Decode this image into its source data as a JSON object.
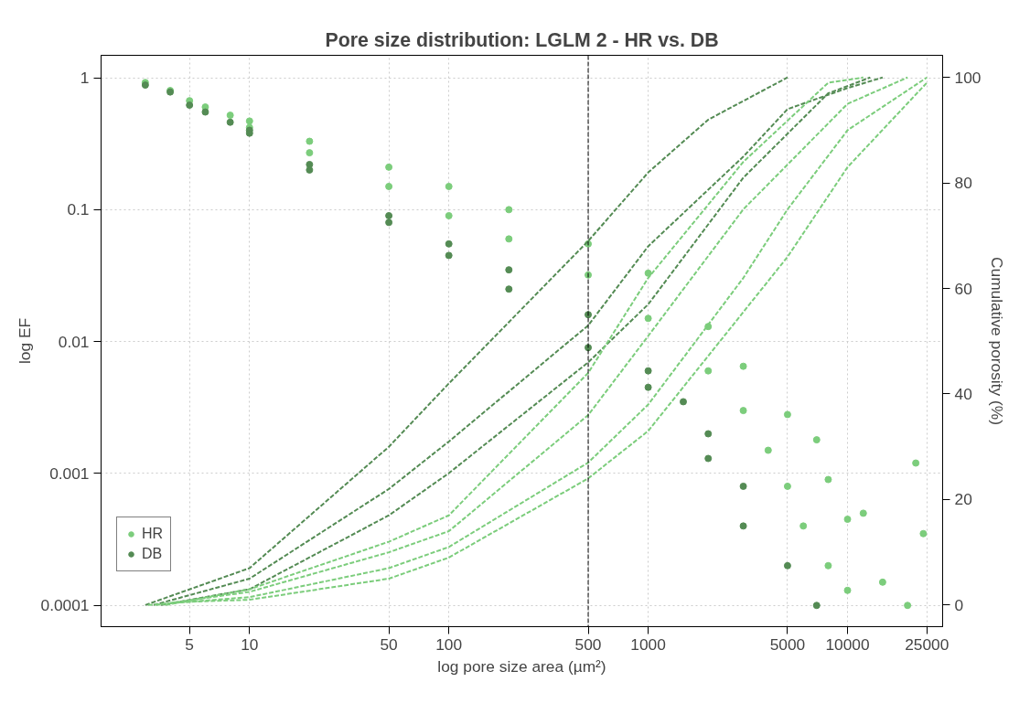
{
  "chart_data": {
    "type": "scatter",
    "title": "Pore size distribution: LGLM 2 - HR vs. DB",
    "xlabel": "log pore size area (µm²)",
    "ylabel": "log EF",
    "y2label": "Cumulative porosity (%)",
    "log": "xy",
    "xlim": [
      1.8,
      30000
    ],
    "xticks": [
      5,
      10,
      50,
      100,
      500,
      1000,
      5000,
      10000,
      25000
    ],
    "ylim": [
      6.9e-05,
      1.48
    ],
    "yticks": [
      1,
      0.1,
      0.01,
      0.001,
      0.0001
    ],
    "y2lim": [
      -4.1,
      104.2
    ],
    "y2ticks": [
      0,
      20,
      40,
      60,
      80,
      100
    ],
    "grid": true,
    "legend": "bottom left",
    "marker": "circle",
    "ref_lines": [
      {
        "axis": "x",
        "value": 500,
        "color": "#000000",
        "line_style": "dashed"
      }
    ],
    "series": [
      {
        "name": "HR",
        "color": "#7ccd7c",
        "x": [
          3,
          4,
          5,
          6,
          8,
          10,
          20,
          50,
          100,
          200,
          500,
          1000,
          2000,
          3000,
          5000,
          7000,
          8000,
          10000,
          10,
          20,
          50,
          100,
          200,
          500,
          1000,
          2000,
          3000,
          4000,
          5000,
          6000,
          8000,
          10000,
          12000,
          15000,
          20000,
          22000,
          24000
        ],
        "values": [
          0.92,
          0.8,
          0.67,
          0.6,
          0.52,
          0.47,
          0.33,
          0.21,
          0.15,
          0.1,
          0.055,
          0.033,
          0.013,
          0.0065,
          0.0028,
          0.0018,
          0.0009,
          0.00045,
          0.42,
          0.27,
          0.15,
          0.09,
          0.06,
          0.032,
          0.015,
          0.006,
          0.003,
          0.0015,
          0.0008,
          0.0004,
          0.0002,
          0.00013,
          0.0005,
          0.00015,
          0.0001,
          0.0012,
          0.00035
        ]
      },
      {
        "name": "DB",
        "color": "#548b54",
        "x": [
          3,
          4,
          5,
          6,
          8,
          10,
          20,
          50,
          100,
          200,
          500,
          1000,
          1500,
          2000,
          3000,
          10,
          20,
          50,
          100,
          200,
          500,
          1000,
          2000,
          3000,
          5000,
          7000
        ],
        "values": [
          0.88,
          0.78,
          0.62,
          0.55,
          0.46,
          0.4,
          0.22,
          0.09,
          0.055,
          0.035,
          0.016,
          0.006,
          0.0035,
          0.002,
          0.0008,
          0.38,
          0.2,
          0.08,
          0.045,
          0.025,
          0.009,
          0.0045,
          0.0013,
          0.0004,
          0.0002,
          0.0001
        ]
      },
      {
        "type": "line",
        "axis": "y2",
        "line_style": "dashed",
        "marker": "none",
        "color": "#548b54",
        "x": [
          3,
          10,
          50,
          100,
          500,
          1000,
          2000,
          5000
        ],
        "values": [
          0,
          7,
          30,
          42,
          69,
          82,
          92,
          100
        ]
      },
      {
        "type": "line",
        "axis": "y2",
        "line_style": "dashed",
        "marker": "none",
        "color": "#548b54",
        "x": [
          3.3,
          10,
          50,
          100,
          500,
          1000,
          3000,
          5000,
          10000,
          15000
        ],
        "values": [
          0,
          5,
          22,
          31,
          53,
          68,
          85,
          94,
          98,
          100
        ]
      },
      {
        "type": "line",
        "axis": "y2",
        "line_style": "dashed",
        "marker": "none",
        "color": "#548b54",
        "x": [
          3.6,
          10,
          50,
          100,
          500,
          1000,
          3000,
          8000,
          13000
        ],
        "values": [
          0,
          3,
          17,
          25,
          46,
          57,
          81,
          97,
          100
        ]
      },
      {
        "type": "line",
        "axis": "y2",
        "line_style": "dashed",
        "marker": "none",
        "color": "#7ccd7c",
        "x": [
          3.1,
          10,
          50,
          100,
          500,
          1000,
          3000,
          5000,
          10000,
          25000
        ],
        "values": [
          0,
          1.5,
          7,
          11,
          27,
          38,
          62,
          75,
          90,
          100
        ]
      },
      {
        "type": "line",
        "axis": "y2",
        "line_style": "dashed",
        "marker": "none",
        "color": "#7ccd7c",
        "x": [
          3.4,
          10,
          50,
          100,
          500,
          1000,
          3000,
          10000,
          20000
        ],
        "values": [
          0,
          2.5,
          10,
          14,
          36,
          51,
          75,
          95,
          100
        ]
      },
      {
        "type": "line",
        "axis": "y2",
        "line_style": "dashed",
        "marker": "none",
        "color": "#7ccd7c",
        "x": [
          3.8,
          10,
          50,
          100,
          500,
          1000,
          3000,
          8000,
          12000
        ],
        "values": [
          0,
          3,
          12,
          17,
          44,
          62,
          84,
          99,
          100
        ]
      },
      {
        "type": "line",
        "axis": "y2",
        "line_style": "dashed",
        "marker": "none",
        "color": "#7ccd7c",
        "x": [
          4.1,
          10,
          50,
          100,
          500,
          1000,
          5000,
          10000,
          25000
        ],
        "values": [
          0.5,
          1,
          5,
          9,
          24,
          33,
          66,
          83,
          99
        ]
      }
    ]
  }
}
